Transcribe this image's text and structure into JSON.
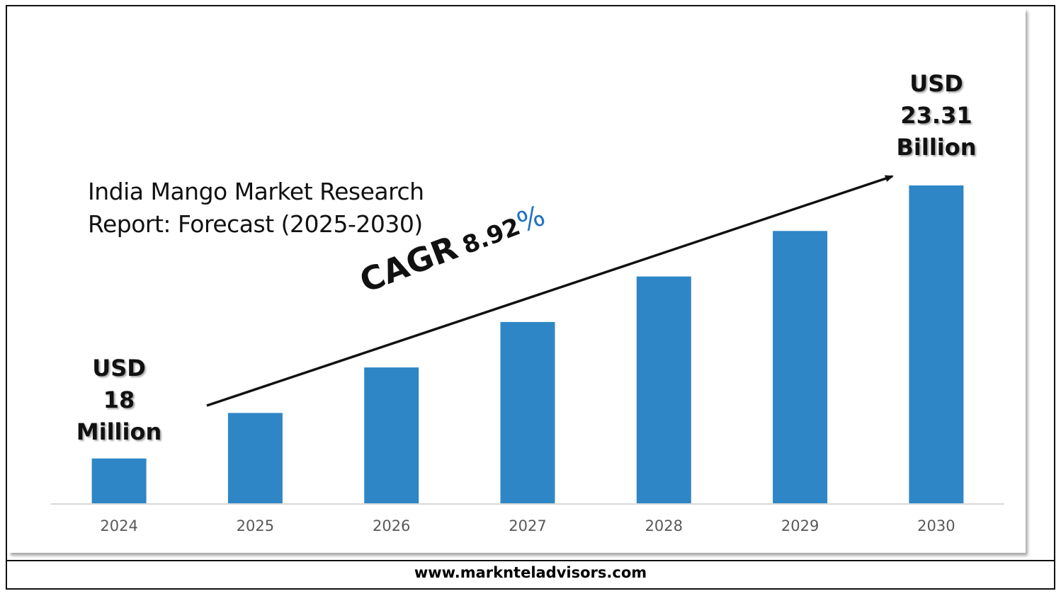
{
  "chart_data": {
    "type": "bar",
    "title": "India Mango Market Research Report: Forecast (2025-2030)",
    "title_lines": [
      "India Mango Market Research",
      "Report: Forecast (2025-2030)"
    ],
    "categories": [
      "2024",
      "2025",
      "2026",
      "2027",
      "2028",
      "2029",
      "2030"
    ],
    "values": [
      1,
      2,
      3,
      4,
      5,
      6,
      7
    ],
    "ylim": [
      0,
      7.1
    ],
    "bar_color": "#2e86c6",
    "grid": false,
    "annotations": {
      "start_value": [
        "USD",
        "18",
        "Million"
      ],
      "end_value": [
        "USD",
        "23.31",
        "Billion"
      ],
      "cagr_label": "CAGR",
      "cagr_value": "8.92",
      "cagr_percent": "%",
      "cagr_percent_color": "#1f72c4",
      "trend_arrow": true
    }
  },
  "footer": {
    "website": "www.marknteladvisors.com"
  }
}
